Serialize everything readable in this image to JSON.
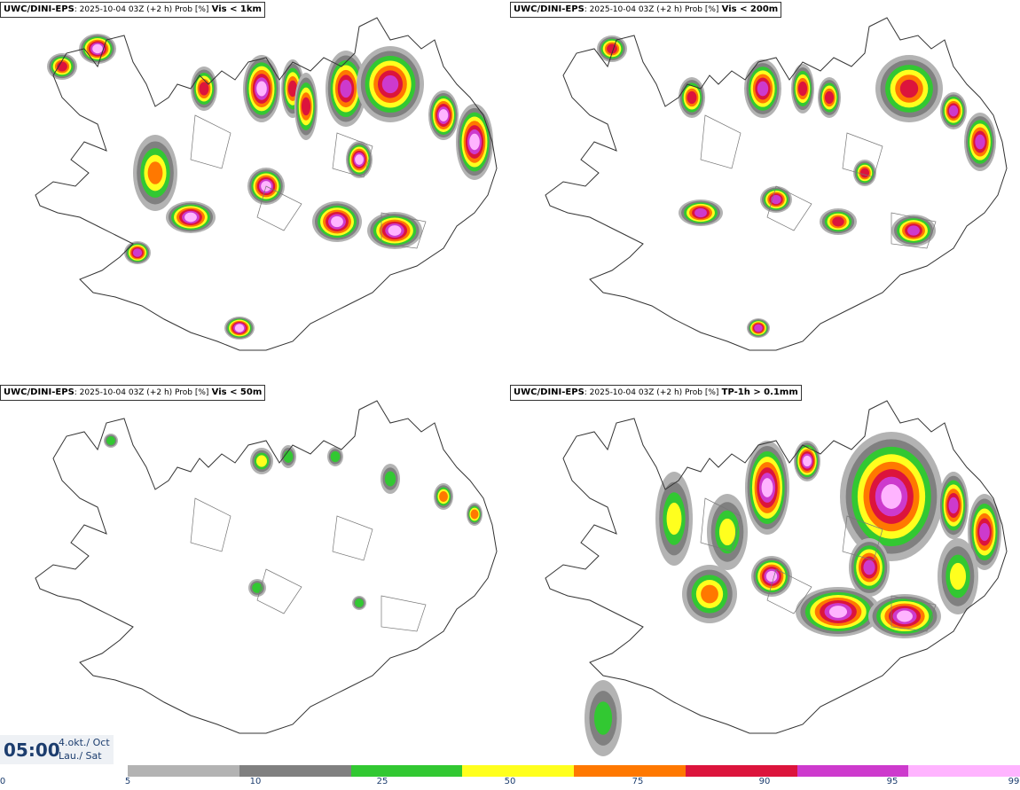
{
  "panels": [
    {
      "model": "UWC/DINI-EPS",
      "meta": ": 2025-10-04 03Z (+2 h) Prob [%]",
      "param": "Vis < 1km"
    },
    {
      "model": "UWC/DINI-EPS",
      "meta": ": 2025-10-04 03Z (+2 h) Prob [%]",
      "param": "Vis < 200m"
    },
    {
      "model": "UWC/DINI-EPS",
      "meta": ": 2025-10-04 03Z (+2 h) Prob [%]",
      "param": "Vis < 50m"
    },
    {
      "model": "UWC/DINI-EPS",
      "meta": ": 2025-10-04 03Z (+2 h) Prob [%]",
      "param": "TP-1h > 0.1mm"
    }
  ],
  "time": {
    "clock": "05:00",
    "date_line1": "4.okt./ Oct",
    "date_line2": "Lau./ Sat"
  },
  "legend": {
    "ticks": [
      "0",
      "5",
      "10",
      "25",
      "50",
      "75",
      "90",
      "95",
      "99"
    ],
    "colors": [
      "#b3b3b3",
      "#808080",
      "#32c832",
      "#ffff1e",
      "#ff7800",
      "#dc143c",
      "#cd3acd",
      "#ffb4ff"
    ]
  }
}
